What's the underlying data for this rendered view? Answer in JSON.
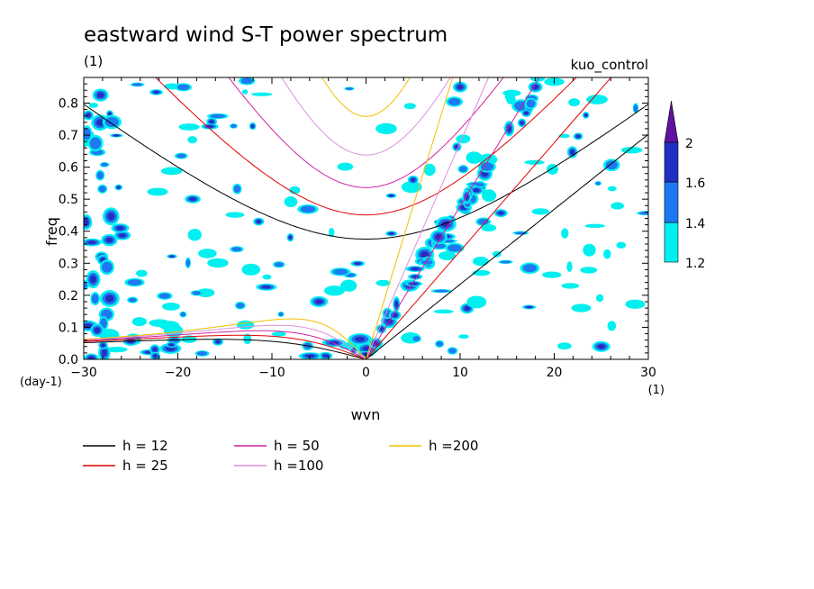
{
  "chart_data": {
    "type": "heatmap",
    "title": "eastward wind S-T power spectrum",
    "subtitle_left": "(1)",
    "subtitle_right": "kuo_control",
    "xlabel": "wvn",
    "ylabel": "freq",
    "x_unit": "(1)",
    "y_unit": "(day-1)",
    "xlim": [
      -30,
      30
    ],
    "ylim": [
      0,
      0.88
    ],
    "xticks": [
      -30,
      -20,
      -10,
      0,
      10,
      20,
      30
    ],
    "xtick_labels": [
      "−30",
      "−20",
      "−10",
      "0",
      "10",
      "20",
      "30"
    ],
    "yticks": [
      0,
      0.1,
      0.2,
      0.3,
      0.4,
      0.5,
      0.6,
      0.7,
      0.8
    ],
    "ytick_labels": [
      "0.0",
      "0.1",
      "0.2",
      "0.3",
      "0.4",
      "0.5",
      "0.6",
      "0.7",
      "0.8"
    ],
    "contour_levels": [
      1.2,
      1.4,
      1.6,
      2
    ],
    "colorbar_labels": [
      "1.2",
      "1.4",
      "1.6",
      "2"
    ],
    "colorbar_colors": [
      "#00f0f0",
      "#1e78f0",
      "#2030c0",
      "#6010a0"
    ],
    "dispersion_curves": [
      {
        "h": 12,
        "color": "#000000"
      },
      {
        "h": 25,
        "color": "#e00000"
      },
      {
        "h": 50,
        "color": "#d020a0"
      },
      {
        "h": 100,
        "color": "#dc90dc"
      },
      {
        "h": 200,
        "color": "#f0c000"
      }
    ],
    "legend": [
      {
        "label": "h = 12",
        "color": "#000000"
      },
      {
        "label": "h = 25",
        "color": "#e00000"
      },
      {
        "label": "h = 50",
        "color": "#d020a0"
      },
      {
        "label": "h =100",
        "color": "#dc90dc"
      },
      {
        "label": "h =200",
        "color": "#f0c000"
      }
    ]
  }
}
